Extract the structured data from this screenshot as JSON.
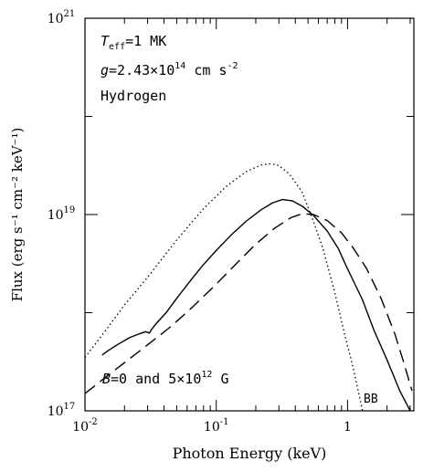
{
  "chart_data": {
    "type": "line",
    "xlabel": "Photon Energy (keV)",
    "ylabel": "Flux (erg s⁻¹ cm⁻² keV⁻¹)",
    "xscale": "log",
    "yscale": "log",
    "xlim": [
      0.01,
      3.2
    ],
    "ylim": [
      1e+17,
      1e+21
    ],
    "x_ticks": [
      {
        "value": 0.01,
        "base": "10",
        "exp": "-2"
      },
      {
        "value": 0.1,
        "base": "10",
        "exp": "-1"
      },
      {
        "value": 1,
        "base": "1",
        "exp": ""
      }
    ],
    "y_ticks": [
      {
        "value": 1e+17,
        "base": "10",
        "exp": "17"
      },
      {
        "value": 1e+19,
        "base": "10",
        "exp": "19"
      },
      {
        "value": 1e+21,
        "base": "10",
        "exp": "21"
      }
    ],
    "annotations": {
      "teff": {
        "main": "T",
        "sub": "eff",
        "rest": "=1 MK"
      },
      "gravity": {
        "main": "g",
        "rest": "=2.43×10",
        "exp": "14",
        "unit": " cm s",
        "unit_exp": "-2"
      },
      "composition": "Hydrogen",
      "field": {
        "main": "B",
        "rest": "=0 and 5×10",
        "exp": "12",
        "unit": " G"
      },
      "bb_label": "BB"
    },
    "series": [
      {
        "style": "dotted",
        "points": [
          [
            0.01,
            3.5e+17
          ],
          [
            0.014,
            6.3e+17
          ],
          [
            0.02,
            1.2e+18
          ],
          [
            0.03,
            2.3e+18
          ],
          [
            0.05,
            5.5e+18
          ],
          [
            0.08,
            1.15e+19
          ],
          [
            0.12,
            1.95e+19
          ],
          [
            0.17,
            2.75e+19
          ],
          [
            0.22,
            3.2e+19
          ],
          [
            0.26,
            3.3e+19
          ],
          [
            0.3,
            3.15e+19
          ],
          [
            0.36,
            2.6e+19
          ],
          [
            0.45,
            1.7e+19
          ],
          [
            0.55,
            8.5e+18
          ],
          [
            0.65,
            4.5e+18
          ],
          [
            0.8,
            1.6e+18
          ],
          [
            0.95,
            6e+17
          ],
          [
            1.1,
            2.8e+17
          ],
          [
            1.3,
            1e+17
          ]
        ]
      },
      {
        "style": "solid",
        "points": [
          [
            0.0135,
            3.7e+17
          ],
          [
            0.015,
            4.1e+17
          ],
          [
            0.018,
            4.8e+17
          ],
          [
            0.022,
            5.6e+17
          ],
          [
            0.026,
            6.1e+17
          ],
          [
            0.029,
            6.4e+17
          ],
          [
            0.031,
            6.2e+17
          ],
          [
            0.032,
            6.7e+17
          ],
          [
            0.035,
            7.8e+17
          ],
          [
            0.042,
            1.02e+18
          ],
          [
            0.05,
            1.4e+18
          ],
          [
            0.065,
            2.2e+18
          ],
          [
            0.08,
            3.1e+18
          ],
          [
            0.1,
            4.3e+18
          ],
          [
            0.13,
            6.2e+18
          ],
          [
            0.17,
            8.6e+18
          ],
          [
            0.22,
            1.12e+19
          ],
          [
            0.27,
            1.32e+19
          ],
          [
            0.32,
            1.42e+19
          ],
          [
            0.38,
            1.38e+19
          ],
          [
            0.45,
            1.22e+19
          ],
          [
            0.55,
            9.8e+18
          ],
          [
            0.7,
            6.8e+18
          ],
          [
            0.85,
            4.5e+18
          ],
          [
            1,
            2.8e+18
          ],
          [
            1.3,
            1.35e+18
          ],
          [
            1.6,
            6.5e+17
          ],
          [
            2,
            3.3e+17
          ],
          [
            2.5,
            1.6e+17
          ],
          [
            3,
            1e+17
          ]
        ]
      },
      {
        "style": "dashed",
        "points": [
          [
            0.01,
            1.5e+17
          ],
          [
            0.015,
            2.3e+17
          ],
          [
            0.02,
            3.1e+17
          ],
          [
            0.03,
            4.7e+17
          ],
          [
            0.045,
            7.2e+17
          ],
          [
            0.065,
            1.12e+18
          ],
          [
            0.1,
            1.95e+18
          ],
          [
            0.15,
            3.4e+18
          ],
          [
            0.2,
            5e+18
          ],
          [
            0.28,
            7.3e+18
          ],
          [
            0.37,
            9.3e+18
          ],
          [
            0.45,
            1.02e+19
          ],
          [
            0.55,
            1e+19
          ],
          [
            0.7,
            8.7e+18
          ],
          [
            0.9,
            6.5e+18
          ],
          [
            1.1,
            4.6e+18
          ],
          [
            1.4,
            2.8e+18
          ],
          [
            1.8,
            1.4e+18
          ],
          [
            2.3,
            6e+17
          ],
          [
            2.7,
            3e+17
          ],
          [
            3.1,
            1.6e+17
          ]
        ]
      }
    ]
  }
}
